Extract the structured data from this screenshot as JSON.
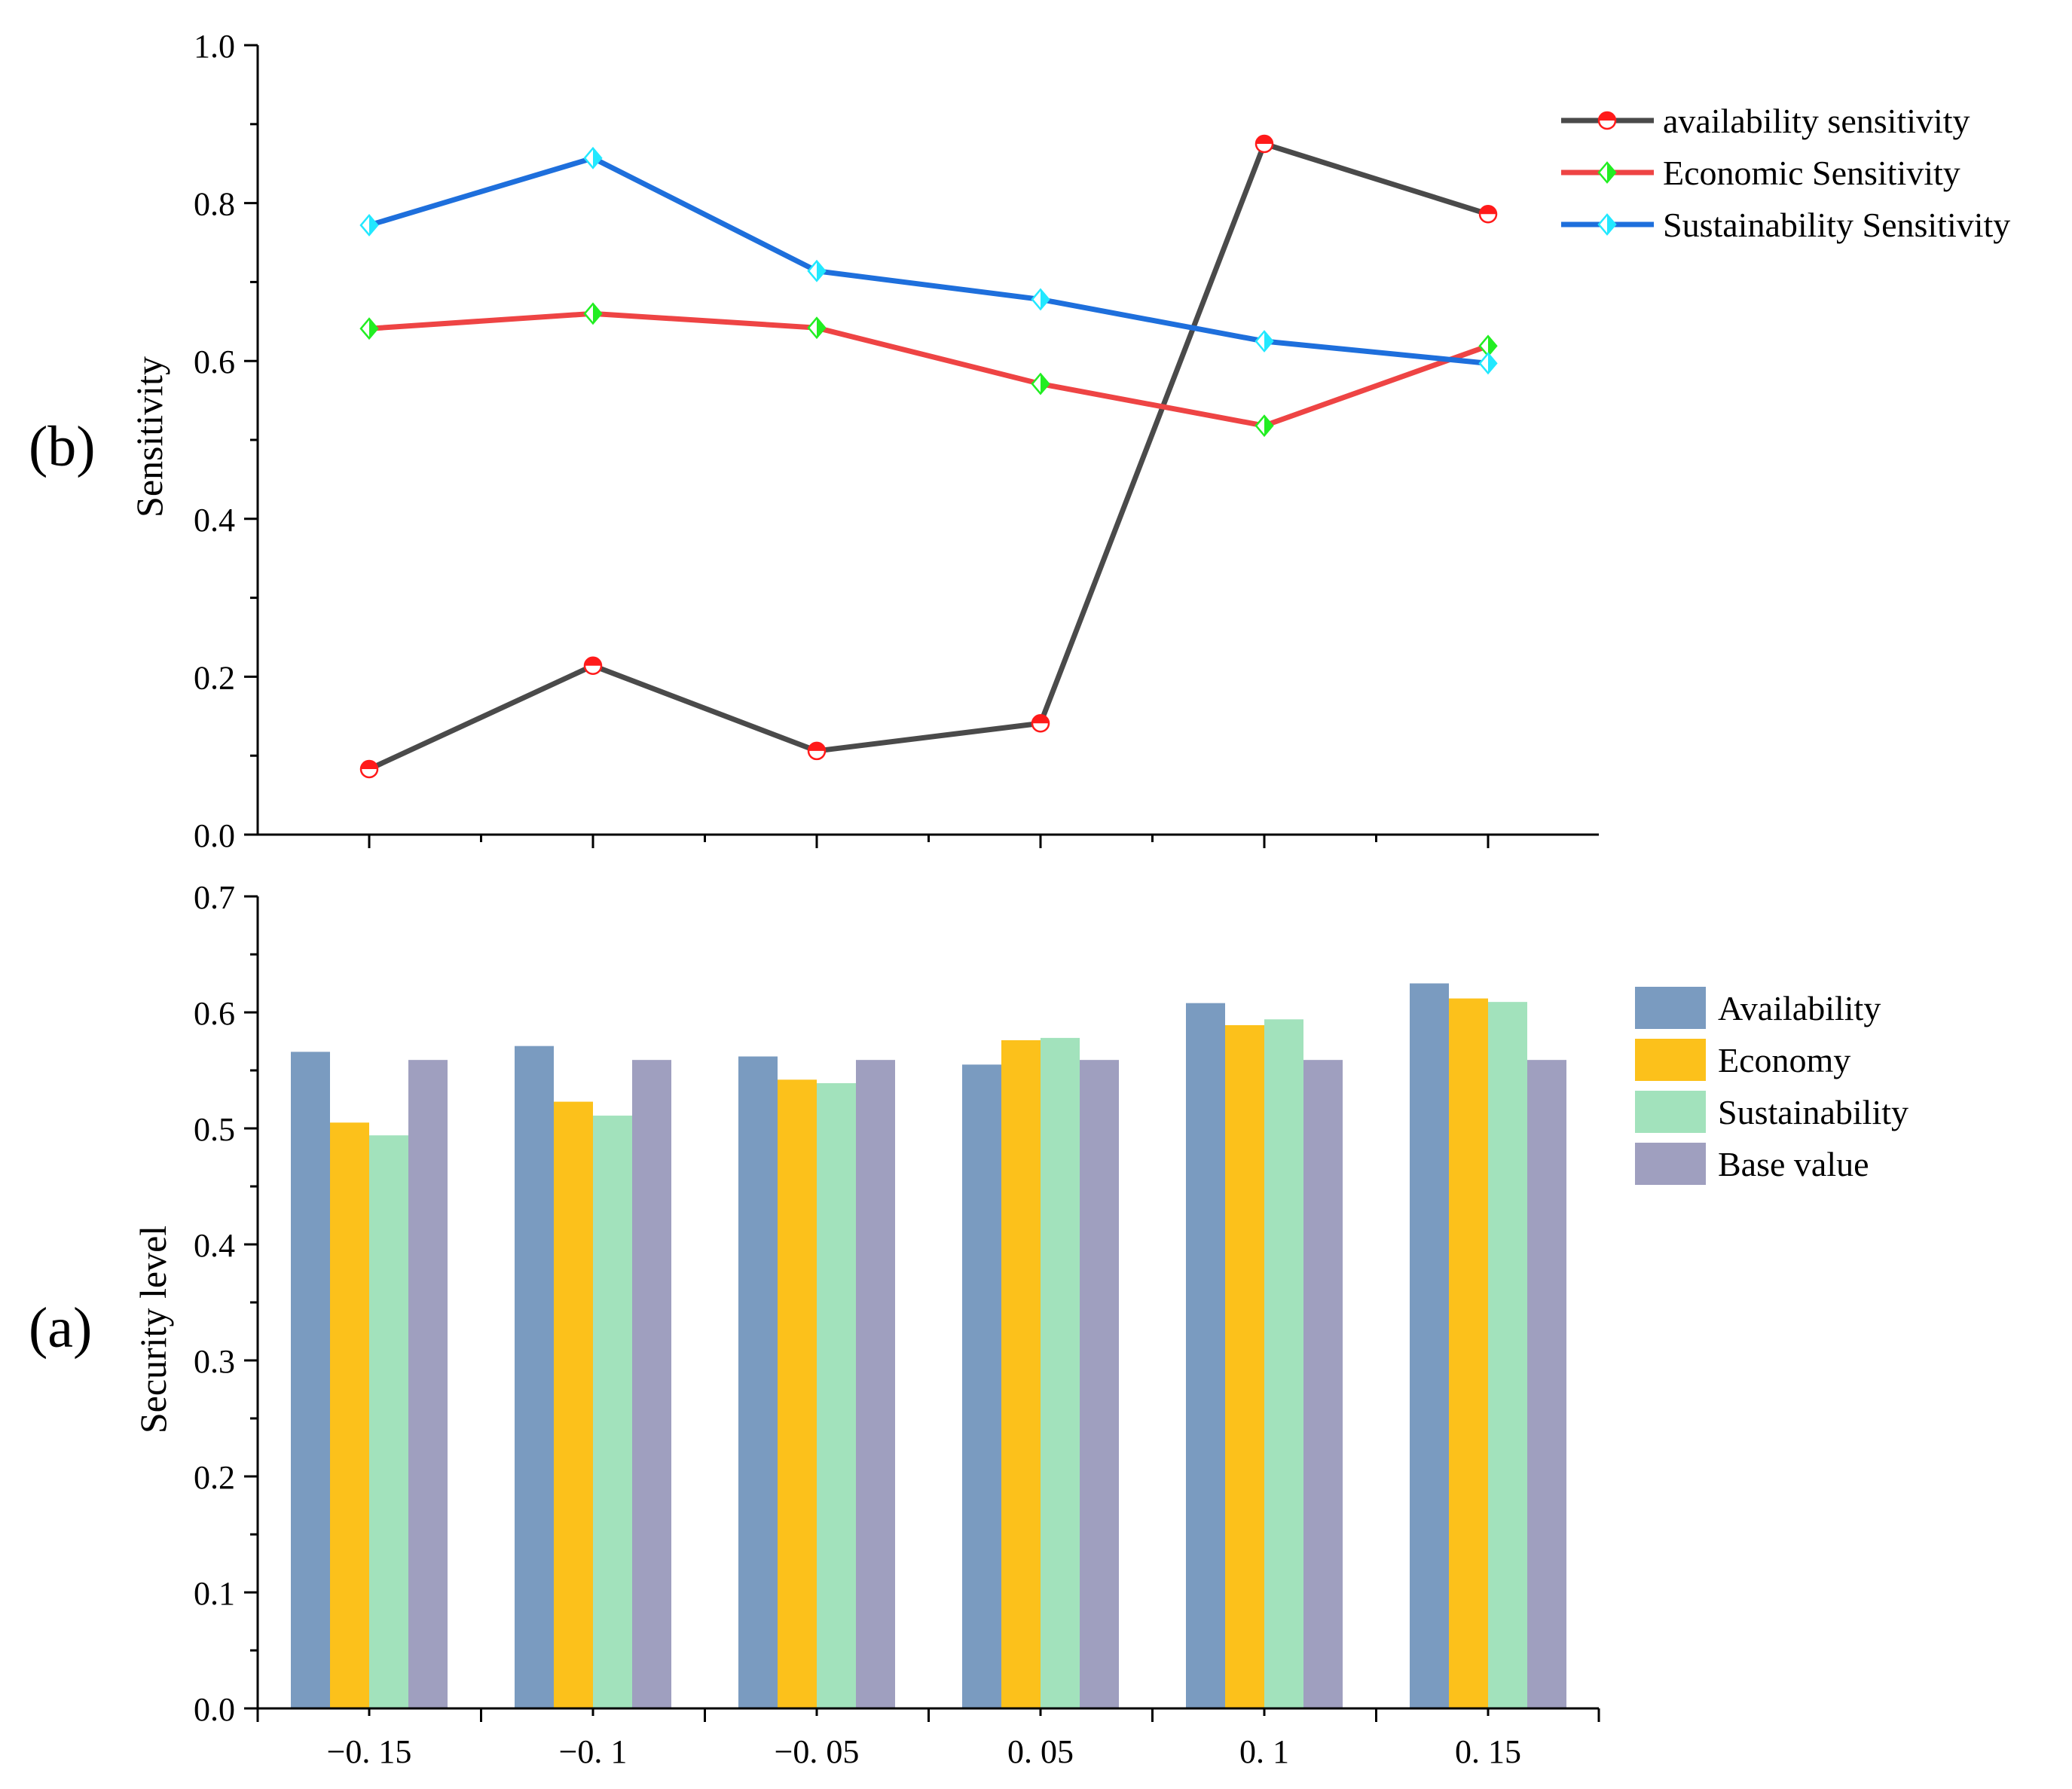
{
  "chart_data": [
    {
      "panel_label": "(b)",
      "type": "line",
      "x": [
        "−0. 15",
        "−0. 1",
        "−0. 05",
        "0. 05",
        "0. 1",
        "0. 15"
      ],
      "ylabel": "Sensitivity",
      "xlabel": "",
      "ylim": [
        0.0,
        1.0
      ],
      "yticks": [
        0.0,
        0.2,
        0.4,
        0.6,
        0.8,
        1.0
      ],
      "ytick_labels": [
        "0.0",
        "0.2",
        "0.4",
        "0.6",
        "0.8",
        "1.0"
      ],
      "legend_position": "top-right",
      "series": [
        {
          "name": "availability sensitivity",
          "line_color": "#4a4a4a",
          "marker": "circle",
          "marker_color": "#ff1a1a",
          "values": [
            0.083,
            0.214,
            0.106,
            0.141,
            0.875,
            0.786
          ]
        },
        {
          "name": "Economic Sensitivity",
          "line_color": "#ee4444",
          "marker": "diamond",
          "marker_color": "#22ee22",
          "values": [
            0.641,
            0.66,
            0.642,
            0.571,
            0.518,
            0.619
          ]
        },
        {
          "name": "Sustainability Sensitivity",
          "line_color": "#1e6fdc",
          "marker": "diamond",
          "marker_color": "#22e8ff",
          "values": [
            0.772,
            0.857,
            0.714,
            0.678,
            0.625,
            0.597
          ]
        }
      ]
    },
    {
      "panel_label": "(a)",
      "type": "bar",
      "categories": [
        "−0. 15",
        "−0. 1",
        "−0. 05",
        "0. 05",
        "0. 1",
        "0. 15"
      ],
      "ylabel": "Security level",
      "xlabel": "",
      "ylim": [
        0.0,
        0.7
      ],
      "yticks": [
        0.0,
        0.1,
        0.2,
        0.3,
        0.4,
        0.5,
        0.6,
        0.7
      ],
      "ytick_labels": [
        "0.0",
        "0.1",
        "0.2",
        "0.3",
        "0.4",
        "0.5",
        "0.6",
        "0.7"
      ],
      "legend_position": "right",
      "series": [
        {
          "name": "Availability",
          "color": "#7a9bc0",
          "values": [
            0.566,
            0.571,
            0.562,
            0.555,
            0.608,
            0.625
          ]
        },
        {
          "name": "Economy",
          "color": "#fcc11b",
          "values": [
            0.505,
            0.523,
            0.542,
            0.576,
            0.589,
            0.612
          ]
        },
        {
          "name": "Sustainability",
          "color": "#a2e2bc",
          "values": [
            0.494,
            0.511,
            0.539,
            0.578,
            0.594,
            0.609
          ]
        },
        {
          "name": "Base value",
          "color": "#9f9fbf",
          "values": [
            0.559,
            0.559,
            0.559,
            0.559,
            0.559,
            0.559
          ]
        }
      ]
    }
  ]
}
